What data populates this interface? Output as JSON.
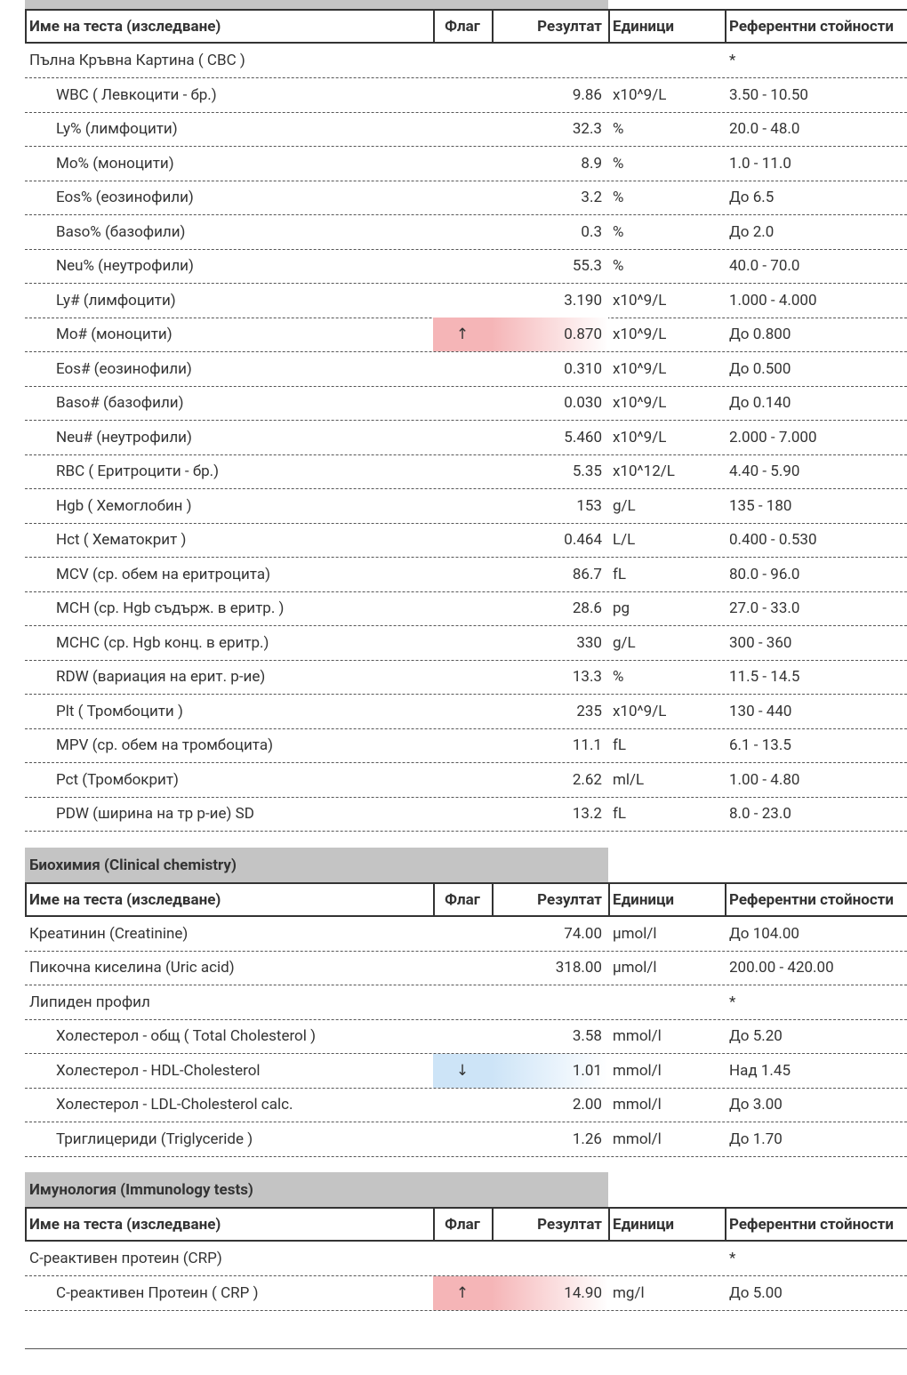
{
  "sections": [
    {
      "header": {
        "name": "Име на теста (изследване)",
        "flag": "Флаг",
        "result": "Резултат",
        "units": "Единици",
        "reference": "Референтни стойности"
      },
      "rows": [
        {
          "name": "Пълна Кръвна Картина ( CBC )",
          "reference": "*",
          "items": [
            {
              "name": "WBC ( Левкоцити - бр.)",
              "result": "9.86",
              "units": "x10^9/L",
              "reference": "3.50 - 10.50"
            },
            {
              "name": "Ly% (лимфоцити)",
              "result": "32.3",
              "units": "%",
              "reference": "20.0 - 48.0"
            },
            {
              "name": "Mo% (моноцити)",
              "result": "8.9",
              "units": "%",
              "reference": "1.0 - 11.0"
            },
            {
              "name": "Eos% (еозинофили)",
              "result": "3.2",
              "units": "%",
              "reference": "До 6.5"
            },
            {
              "name": "Baso% (базофили)",
              "result": "0.3",
              "units": "%",
              "reference": "До 2.0"
            },
            {
              "name": "Neu% (неутрофили)",
              "result": "55.3",
              "units": "%",
              "reference": "40.0 - 70.0"
            },
            {
              "name": "Ly# (лимфоцити)",
              "result": "3.190",
              "units": "x10^9/L",
              "reference": "1.000 - 4.000"
            },
            {
              "name": "Mo# (моноцити)",
              "flag": "↑",
              "result": "0.870",
              "units": "x10^9/L",
              "reference": "До 0.800"
            },
            {
              "name": "Eos# (еозинофили)",
              "result": "0.310",
              "units": "x10^9/L",
              "reference": "До 0.500"
            },
            {
              "name": "Baso# (базофили)",
              "result": "0.030",
              "units": "x10^9/L",
              "reference": "До 0.140"
            },
            {
              "name": "Neu# (неутрофили)",
              "result": "5.460",
              "units": "x10^9/L",
              "reference": "2.000 - 7.000"
            },
            {
              "name": "RBC ( Еритроцити - бр.)",
              "result": "5.35",
              "units": "x10^12/L",
              "reference": "4.40 - 5.90"
            },
            {
              "name": "Hgb ( Хемоглобин )",
              "result": "153",
              "units": "g/L",
              "reference": "135 - 180"
            },
            {
              "name": "Hct ( Хематокрит )",
              "result": "0.464",
              "units": "L/L",
              "reference": "0.400 - 0.530"
            },
            {
              "name": "MCV (ср. обем на еритроцита)",
              "result": "86.7",
              "units": "fL",
              "reference": "80.0 - 96.0"
            },
            {
              "name": "MCH (ср. Hgb съдърж. в еритр. )",
              "result": "28.6",
              "units": "pg",
              "reference": "27.0 - 33.0"
            },
            {
              "name": "MCHC (ср. Hgb конц. в еритр.)",
              "result": "330",
              "units": "g/L",
              "reference": "300 - 360"
            },
            {
              "name": "RDW (вариация на ерит. р-ие)",
              "result": "13.3",
              "units": "%",
              "reference": "11.5 - 14.5"
            },
            {
              "name": "Plt ( Тромбоцити )",
              "result": "235",
              "units": "x10^9/L",
              "reference": "130 - 440"
            },
            {
              "name": "MPV (ср. обем на тромбоцита)",
              "result": "11.1",
              "units": "fL",
              "reference": "6.1 - 13.5"
            },
            {
              "name": "Pct (Тромбокрит)",
              "result": "2.62",
              "units": "ml/L",
              "reference": "1.00 - 4.80"
            },
            {
              "name": "PDW (ширина на тр р-ие) SD",
              "result": "13.2",
              "units": "fL",
              "reference": "8.0 - 23.0"
            }
          ]
        }
      ]
    },
    {
      "title": "Биохимия (Clinical chemistry)",
      "header": {
        "name": "Име на теста (изследване)",
        "flag": "Флаг",
        "result": "Резултат",
        "units": "Единици",
        "reference": "Референтни стойности"
      },
      "rows": [
        {
          "name": "Креатинин (Creatinine)",
          "result": "74.00",
          "units": "µmol/l",
          "reference": "До 104.00"
        },
        {
          "name": "Пикочна киселина (Uric acid)",
          "result": "318.00",
          "units": "µmol/l",
          "reference": "200.00 - 420.00"
        },
        {
          "name": "Липиден профил",
          "reference": "*",
          "items": [
            {
              "name": "Холестерол - общ ( Total Cholesterol )",
              "result": "3.58",
              "units": "mmol/l",
              "reference": "До 5.20"
            },
            {
              "name": "Холестерол - HDL-Cholesterol",
              "flag": "↓",
              "result": "1.01",
              "units": "mmol/l",
              "reference": "Над 1.45"
            },
            {
              "name": "Холестерол - LDL-Cholesterol calc.",
              "result": "2.00",
              "units": "mmol/l",
              "reference": "До 3.00"
            },
            {
              "name": "Триглицериди (Triglyceride )",
              "result": "1.26",
              "units": "mmol/l",
              "reference": "До 1.70"
            }
          ]
        }
      ]
    },
    {
      "title": "Имунология (Immunology tests)",
      "header": {
        "name": "Име на теста (изследване)",
        "flag": "Флаг",
        "result": "Резултат",
        "units": "Единици",
        "reference": "Референтни стойности"
      },
      "rows": [
        {
          "name": "C-реактивен протеин (CRP)",
          "reference": "*",
          "items": [
            {
              "name": "C-реактивен Протеин ( CRP )",
              "flag": "↑",
              "result": "14.90",
              "units": "mg/l",
              "reference": "До 5.00"
            }
          ]
        }
      ]
    }
  ]
}
